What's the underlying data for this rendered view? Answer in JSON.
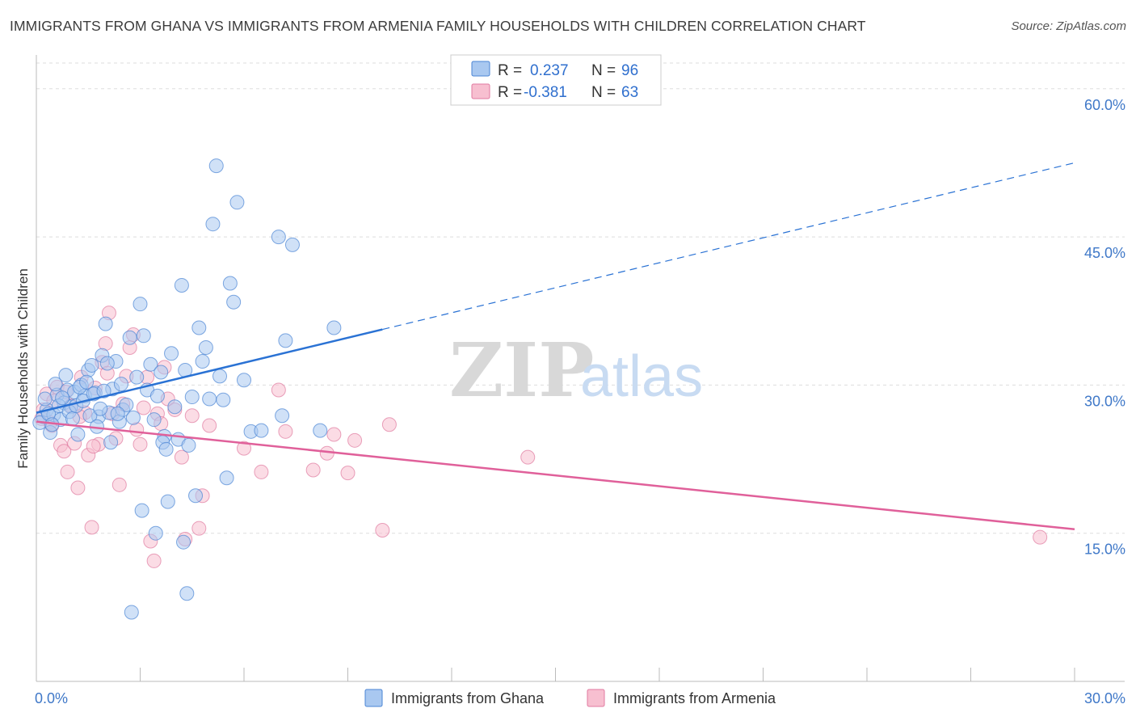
{
  "header": {
    "title": "IMMIGRANTS FROM GHANA VS IMMIGRANTS FROM ARMENIA FAMILY HOUSEHOLDS WITH CHILDREN CORRELATION CHART",
    "source": "Source: ZipAtlas.com"
  },
  "watermark": {
    "zip": "ZIP",
    "atlas": "atlas"
  },
  "legend": {
    "rows": [
      {
        "r_label": "R =",
        "r_value": "0.237",
        "n_label": "N =",
        "n_value": "96"
      },
      {
        "r_label": "R =",
        "r_value": "-0.381",
        "n_label": "N =",
        "n_value": "63"
      }
    ]
  },
  "colors": {
    "ghana_fill": "#a9c8f0",
    "ghana_stroke": "#4a84d4",
    "ghana_line": "#2a72d4",
    "armenia_fill": "#f7bfd0",
    "armenia_stroke": "#e07aa0",
    "armenia_line": "#e0609a",
    "tick_label": "#3f78c8",
    "grid": "#dddddd"
  },
  "chart_data": {
    "type": "scatter",
    "ylabel": "Family Households with Children",
    "xlim": [
      0,
      30
    ],
    "ylim": [
      0,
      60
    ],
    "y_ticks": [
      15,
      30,
      45,
      60
    ],
    "y_tick_labels": [
      "15.0%",
      "30.0%",
      "45.0%",
      "60.0%"
    ],
    "x_tick_labels": [
      "0.0%",
      "30.0%"
    ],
    "grid": true,
    "legend_position": "top-center",
    "series": [
      {
        "name": "Immigrants from Ghana",
        "r": 0.237,
        "n": 96,
        "trend": {
          "x0": 0,
          "y0": 27.2,
          "x1": 30,
          "y1": 52.5,
          "solid_until_x": 10
        },
        "points": [
          [
            0.2,
            26.8
          ],
          [
            0.3,
            27.5
          ],
          [
            0.4,
            25.2
          ],
          [
            0.5,
            27.0
          ],
          [
            0.6,
            29.0
          ],
          [
            0.7,
            26.5
          ],
          [
            0.8,
            28.2
          ],
          [
            0.9,
            29.5
          ],
          [
            1.0,
            27.8
          ],
          [
            1.1,
            29.3
          ],
          [
            1.2,
            25.0
          ],
          [
            1.3,
            30.0
          ],
          [
            1.4,
            28.9
          ],
          [
            1.5,
            31.5
          ],
          [
            1.6,
            32.0
          ],
          [
            1.7,
            29.2
          ],
          [
            1.8,
            26.8
          ],
          [
            1.9,
            33.0
          ],
          [
            2.0,
            36.2
          ],
          [
            2.1,
            27.2
          ],
          [
            2.2,
            29.6
          ],
          [
            2.3,
            32.4
          ],
          [
            2.4,
            26.3
          ],
          [
            2.5,
            27.5
          ],
          [
            2.6,
            28.0
          ],
          [
            2.7,
            34.8
          ],
          [
            2.8,
            26.7
          ],
          [
            2.9,
            30.8
          ],
          [
            3.0,
            38.2
          ],
          [
            3.1,
            35.0
          ],
          [
            3.2,
            29.5
          ],
          [
            3.3,
            32.1
          ],
          [
            3.4,
            26.5
          ],
          [
            3.5,
            28.9
          ],
          [
            3.6,
            31.3
          ],
          [
            3.7,
            24.8
          ],
          [
            3.8,
            18.2
          ],
          [
            3.9,
            33.2
          ],
          [
            4.0,
            27.8
          ],
          [
            4.1,
            24.5
          ],
          [
            4.2,
            40.1
          ],
          [
            4.3,
            31.5
          ],
          [
            4.4,
            23.9
          ],
          [
            4.5,
            28.8
          ],
          [
            4.6,
            18.8
          ],
          [
            4.7,
            35.8
          ],
          [
            4.8,
            32.4
          ],
          [
            4.9,
            33.8
          ],
          [
            5.0,
            28.6
          ],
          [
            5.1,
            46.3
          ],
          [
            5.2,
            52.2
          ],
          [
            5.3,
            30.9
          ],
          [
            5.4,
            28.5
          ],
          [
            5.5,
            20.6
          ],
          [
            5.6,
            40.3
          ],
          [
            5.7,
            38.4
          ],
          [
            5.8,
            48.5
          ],
          [
            6.0,
            30.5
          ],
          [
            6.2,
            25.3
          ],
          [
            6.5,
            25.4
          ],
          [
            7.0,
            45.0
          ],
          [
            7.2,
            34.5
          ],
          [
            7.4,
            44.2
          ],
          [
            7.1,
            26.9
          ],
          [
            8.2,
            25.4
          ],
          [
            8.6,
            35.8
          ],
          [
            0.1,
            26.2
          ],
          [
            0.25,
            28.6
          ],
          [
            0.35,
            27.1
          ],
          [
            0.45,
            26.0
          ],
          [
            0.55,
            30.1
          ],
          [
            0.65,
            27.9
          ],
          [
            0.75,
            28.7
          ],
          [
            0.85,
            31.0
          ],
          [
            0.95,
            27.3
          ],
          [
            1.05,
            26.6
          ],
          [
            1.15,
            27.9
          ],
          [
            1.25,
            29.8
          ],
          [
            1.35,
            28.4
          ],
          [
            1.45,
            30.3
          ],
          [
            1.55,
            26.9
          ],
          [
            1.65,
            29.1
          ],
          [
            1.75,
            25.8
          ],
          [
            1.85,
            27.6
          ],
          [
            1.95,
            29.4
          ],
          [
            2.05,
            32.2
          ],
          [
            2.15,
            24.2
          ],
          [
            2.35,
            27.1
          ],
          [
            2.45,
            30.1
          ],
          [
            3.05,
            17.3
          ],
          [
            3.45,
            15.0
          ],
          [
            3.65,
            24.2
          ],
          [
            3.75,
            23.5
          ],
          [
            4.25,
            14.1
          ],
          [
            4.35,
            8.9
          ],
          [
            2.75,
            7.0
          ]
        ]
      },
      {
        "name": "Immigrants from Armenia",
        "r": -0.381,
        "n": 63,
        "trend": {
          "x0": 0,
          "y0": 26.3,
          "x1": 30,
          "y1": 15.4
        },
        "points": [
          [
            0.2,
            27.5
          ],
          [
            0.3,
            29.1
          ],
          [
            0.4,
            26.2
          ],
          [
            0.5,
            28.4
          ],
          [
            0.6,
            29.8
          ],
          [
            0.7,
            23.9
          ],
          [
            0.8,
            23.3
          ],
          [
            0.9,
            21.2
          ],
          [
            1.0,
            27.9
          ],
          [
            1.1,
            24.1
          ],
          [
            1.2,
            19.6
          ],
          [
            1.3,
            30.8
          ],
          [
            1.4,
            27.2
          ],
          [
            1.5,
            22.9
          ],
          [
            1.6,
            15.6
          ],
          [
            1.7,
            29.7
          ],
          [
            1.8,
            24.0
          ],
          [
            1.9,
            32.3
          ],
          [
            2.0,
            34.2
          ],
          [
            2.1,
            37.3
          ],
          [
            2.2,
            27.1
          ],
          [
            2.3,
            24.6
          ],
          [
            2.4,
            19.9
          ],
          [
            2.5,
            28.1
          ],
          [
            2.6,
            30.9
          ],
          [
            2.7,
            33.8
          ],
          [
            2.8,
            35.1
          ],
          [
            2.9,
            25.5
          ],
          [
            3.0,
            24.0
          ],
          [
            3.1,
            27.7
          ],
          [
            3.2,
            30.8
          ],
          [
            3.3,
            14.2
          ],
          [
            3.4,
            12.2
          ],
          [
            3.5,
            27.1
          ],
          [
            3.6,
            26.1
          ],
          [
            3.7,
            31.8
          ],
          [
            3.8,
            28.6
          ],
          [
            4.0,
            27.5
          ],
          [
            4.2,
            22.7
          ],
          [
            4.3,
            14.4
          ],
          [
            4.5,
            26.9
          ],
          [
            4.7,
            15.5
          ],
          [
            4.8,
            18.8
          ],
          [
            5.0,
            25.9
          ],
          [
            6.0,
            23.6
          ],
          [
            6.5,
            21.2
          ],
          [
            7.0,
            29.5
          ],
          [
            7.2,
            25.3
          ],
          [
            8.0,
            21.4
          ],
          [
            8.4,
            23.1
          ],
          [
            8.6,
            25.0
          ],
          [
            9.0,
            21.1
          ],
          [
            9.2,
            24.4
          ],
          [
            10.0,
            15.3
          ],
          [
            10.2,
            26.0
          ],
          [
            14.2,
            22.7
          ],
          [
            29.0,
            14.6
          ],
          [
            0.15,
            26.6
          ],
          [
            0.45,
            25.9
          ],
          [
            0.85,
            29.3
          ],
          [
            1.25,
            26.8
          ],
          [
            1.65,
            23.8
          ],
          [
            2.05,
            31.2
          ]
        ]
      }
    ]
  },
  "bottom_legend": {
    "items": [
      {
        "label": "Immigrants from Ghana"
      },
      {
        "label": "Immigrants from Armenia"
      }
    ]
  }
}
